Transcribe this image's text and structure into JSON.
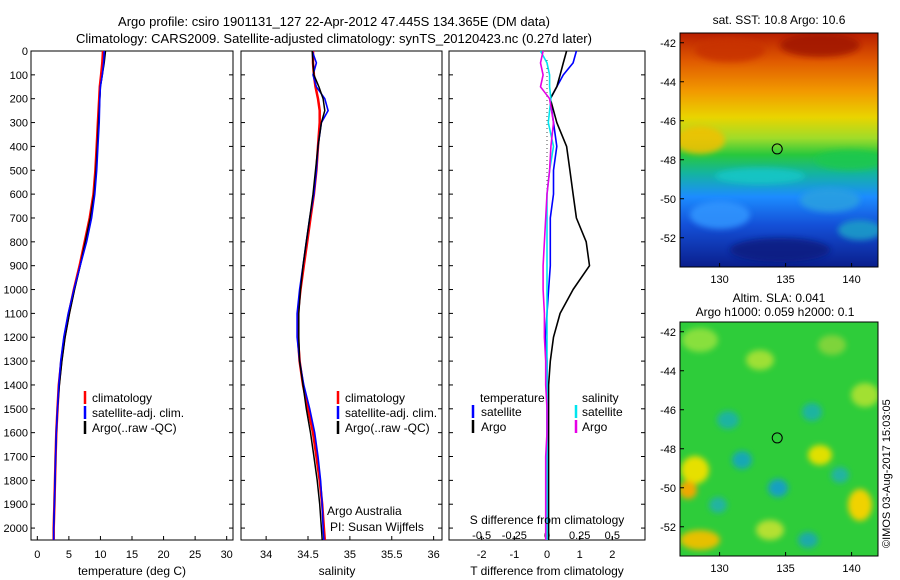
{
  "header": {
    "title_line1": "Argo profile: csiro 1901131_127 22-Apr-2012 47.445S 134.365E (DM data)",
    "title_line2": "Climatology: CARS2009. Satellite-adjusted climatology: synTS_20120423.nc (0.27d later)"
  },
  "colors": {
    "climatology": "#ff0000",
    "satellite": "#0000ff",
    "argo": "#000000",
    "satellite_salinity": "#00e5ee",
    "argo_salinity": "#e600e6"
  },
  "legend": {
    "climatology": "climatology",
    "satellite": "satellite-adj. clim.",
    "argo": "Argo(..raw -QC)",
    "temperature_head": "temperature",
    "salinity_head": "salinity",
    "sat_short": "satellite",
    "argo_short": "Argo"
  },
  "credits": {
    "line1": "Argo Australia",
    "line2": "PI: Susan Wijffels",
    "stamp": "©IMOS 03-Aug-2017 15:03:05"
  },
  "chart_data": [
    {
      "type": "line",
      "panel": "temperature",
      "xlabel": "temperature (deg C)",
      "ylabel": "",
      "xlim": [
        -1,
        31
      ],
      "ylim": [
        2050,
        0
      ],
      "xticks": [
        "0",
        "5",
        "10",
        "15",
        "20",
        "25",
        "30"
      ],
      "yticks": [
        "0",
        "100",
        "200",
        "300",
        "400",
        "500",
        "600",
        "700",
        "800",
        "900",
        "1000",
        "1100",
        "1200",
        "1300",
        "1400",
        "1500",
        "1600",
        "1700",
        "1800",
        "1900",
        "2000"
      ],
      "depth": [
        0,
        50,
        100,
        150,
        200,
        300,
        400,
        500,
        600,
        700,
        800,
        900,
        1000,
        1100,
        1200,
        1300,
        1400,
        1500,
        1600,
        1700,
        1800,
        1900,
        2000,
        2050
      ],
      "series": [
        {
          "name": "climatology",
          "values": [
            10.4,
            10.3,
            10.1,
            9.9,
            9.8,
            9.6,
            9.4,
            9.2,
            8.9,
            8.3,
            7.5,
            6.7,
            5.8,
            5.0,
            4.3,
            3.8,
            3.4,
            3.2,
            3.0,
            2.9,
            2.8,
            2.7,
            2.6,
            2.6
          ]
        },
        {
          "name": "satellite-adj. clim.",
          "values": [
            10.8,
            10.6,
            10.3,
            10.0,
            9.9,
            9.7,
            9.5,
            9.3,
            9.0,
            8.4,
            7.6,
            6.8,
            5.9,
            5.1,
            4.4,
            3.9,
            3.5,
            3.2,
            3.0,
            2.9,
            2.8,
            2.7,
            2.6,
            2.6
          ]
        },
        {
          "name": "Argo(..raw -QC)",
          "values": [
            10.6,
            10.5,
            10.3,
            10.0,
            9.9,
            9.8,
            9.6,
            9.4,
            9.1,
            8.6,
            7.8,
            6.8,
            5.8,
            4.9,
            4.2,
            3.7,
            3.4,
            3.2,
            3.0,
            2.9,
            2.8,
            2.7,
            2.6,
            2.6
          ]
        }
      ]
    },
    {
      "type": "line",
      "panel": "salinity",
      "xlabel": "salinity",
      "xlim": [
        33.7,
        36.1
      ],
      "ylim": [
        2050,
        0
      ],
      "xticks": [
        "34",
        "34.5",
        "35",
        "35.5",
        "36"
      ],
      "depth": [
        0,
        50,
        100,
        150,
        200,
        250,
        300,
        400,
        500,
        600,
        700,
        800,
        900,
        1000,
        1100,
        1200,
        1300,
        1400,
        1500,
        1600,
        1700,
        1800,
        1900,
        2000,
        2050
      ],
      "series": [
        {
          "name": "climatology",
          "values": [
            34.56,
            34.56,
            34.57,
            34.59,
            34.62,
            34.64,
            34.64,
            34.62,
            34.6,
            34.57,
            34.53,
            34.49,
            34.45,
            34.41,
            34.38,
            34.38,
            34.4,
            34.44,
            34.5,
            34.56,
            34.6,
            34.64,
            34.67,
            34.69,
            34.7
          ]
        },
        {
          "name": "satellite-adj. clim.",
          "values": [
            34.55,
            34.6,
            34.56,
            34.6,
            34.7,
            34.74,
            34.66,
            34.62,
            34.6,
            34.57,
            34.52,
            34.48,
            34.44,
            34.4,
            34.37,
            34.37,
            34.4,
            34.45,
            34.52,
            34.58,
            34.62,
            34.65,
            34.67,
            34.68,
            34.69
          ]
        },
        {
          "name": "Argo(..raw -QC)",
          "values": [
            34.55,
            34.56,
            34.57,
            34.63,
            34.68,
            34.7,
            34.66,
            34.62,
            34.59,
            34.56,
            34.52,
            34.48,
            34.44,
            34.41,
            34.39,
            34.39,
            34.4,
            34.44,
            34.48,
            34.53,
            34.57,
            34.61,
            34.64,
            34.66,
            34.67
          ]
        }
      ]
    },
    {
      "type": "line",
      "panel": "differences",
      "xlabel": "T difference from climatology",
      "xlabel_top": "S difference from climatology",
      "xlim": [
        -3,
        3
      ],
      "ylim": [
        2050,
        0
      ],
      "xticks": [
        "-2",
        "-1",
        "0",
        "1",
        "2"
      ],
      "xticks_top": [
        "-0.5",
        "-0.25",
        "0",
        "0.25",
        "0.5"
      ],
      "depth": [
        0,
        50,
        100,
        150,
        200,
        300,
        400,
        500,
        600,
        700,
        800,
        900,
        1000,
        1100,
        1200,
        1300,
        1400,
        1500,
        1600,
        1700,
        1800,
        1900,
        2000,
        2050
      ],
      "series": [
        {
          "name": "temperature satellite",
          "values": [
            0.9,
            0.8,
            0.5,
            0.3,
            0.1,
            0.2,
            0.3,
            0.2,
            0.2,
            0.1,
            0.1,
            0.1,
            0.05,
            0.0,
            -0.05,
            0.0,
            0.0,
            0.0,
            0.0,
            0.0,
            0.0,
            0.0,
            0.0,
            0.0
          ]
        },
        {
          "name": "temperature Argo",
          "values": [
            0.6,
            0.5,
            0.4,
            0.3,
            0.1,
            0.3,
            0.6,
            0.7,
            0.8,
            0.9,
            1.2,
            1.3,
            0.8,
            0.4,
            0.2,
            0.1,
            0.05,
            0.05,
            0.05,
            0.05,
            0.05,
            0.05,
            0.05,
            0.05
          ]
        },
        {
          "name": "salinity satellite",
          "values": [
            -0.05,
            0.0,
            0.02,
            0.02,
            0.03,
            0.01,
            0.05,
            0.02,
            0.0,
            0.0,
            0.0,
            0.0,
            0.0,
            0.0,
            0.0,
            0.0,
            0.0,
            0.0,
            0.0,
            0.0,
            0.0,
            0.0,
            0.0,
            0.0
          ]
        },
        {
          "name": "salinity Argo",
          "values": [
            -0.03,
            -0.05,
            -0.03,
            -0.05,
            0.02,
            0.05,
            0.03,
            0.02,
            0.0,
            -0.01,
            -0.02,
            -0.03,
            -0.03,
            -0.02,
            -0.02,
            -0.01,
            -0.01,
            0.0,
            0.0,
            -0.01,
            -0.01,
            -0.01,
            -0.01,
            -0.01
          ]
        }
      ]
    },
    {
      "type": "heatmap",
      "panel": "sst-map",
      "title": "sat. SST: 10.8 Argo: 10.6",
      "xlim": [
        127,
        142
      ],
      "ylim": [
        -53.5,
        -41.5
      ],
      "xticks": [
        "130",
        "135",
        "140"
      ],
      "yticks": [
        "-42",
        "-44",
        "-46",
        "-48",
        "-50",
        "-52"
      ],
      "marker": {
        "lon": 134.365,
        "lat": -47.445
      }
    },
    {
      "type": "heatmap",
      "panel": "sla-map",
      "title_line1": "Altim. SLA: 0.041",
      "title_line2": "Argo h1000: 0.059 h2000: 0.1",
      "xlim": [
        127,
        142
      ],
      "ylim": [
        -53.5,
        -41.5
      ],
      "xticks": [
        "130",
        "135",
        "140"
      ],
      "yticks": [
        "-42",
        "-44",
        "-46",
        "-48",
        "-50",
        "-52"
      ],
      "marker": {
        "lon": 134.365,
        "lat": -47.445
      }
    }
  ]
}
